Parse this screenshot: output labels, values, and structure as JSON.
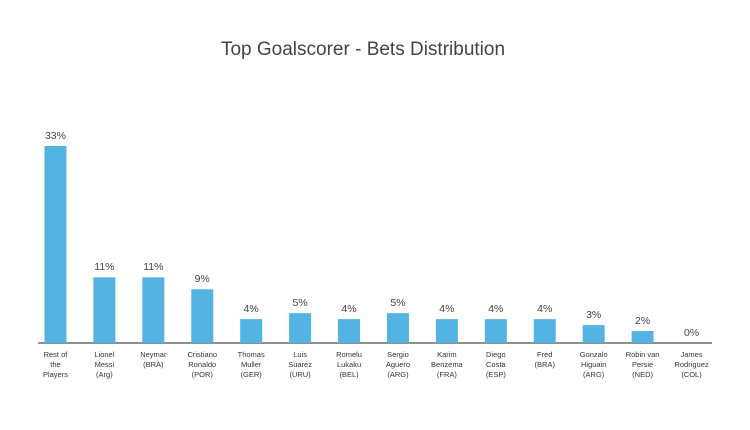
{
  "chart_data": {
    "type": "bar",
    "title": "Top Goalscorer - Bets Distribution",
    "categories": [
      [
        "Rest of",
        "the",
        "Players"
      ],
      [
        "Lionel",
        "Messi",
        "(Arg)"
      ],
      [
        "Neymar",
        "(BRA)"
      ],
      [
        "Cristiano",
        "Ronaldo",
        "(POR)"
      ],
      [
        "Thomas",
        "Muller",
        "(GER)"
      ],
      [
        "Luis",
        "Suarez",
        "(URU)"
      ],
      [
        "Romelu",
        "Lukaku",
        "(BEL)"
      ],
      [
        "Sergio",
        "Aguero",
        "(ARG)"
      ],
      [
        "Karim",
        "Benzema",
        "(FRA)"
      ],
      [
        "Diego",
        "Costa",
        "(ESP)"
      ],
      [
        "Fred",
        "(BRA)"
      ],
      [
        "Gonzalo",
        "Higuain",
        "(ARG)"
      ],
      [
        "Robin van",
        "Persie",
        "(NED)"
      ],
      [
        "James",
        "Rodriguez",
        "(COL)"
      ]
    ],
    "values": [
      33,
      11,
      11,
      9,
      4,
      5,
      4,
      5,
      4,
      4,
      4,
      3,
      2,
      0
    ],
    "value_labels": [
      "33%",
      "11%",
      "11%",
      "9%",
      "4%",
      "5%",
      "4%",
      "5%",
      "4%",
      "4%",
      "4%",
      "3%",
      "2%",
      "0%"
    ],
    "color": "#53b4e4"
  }
}
